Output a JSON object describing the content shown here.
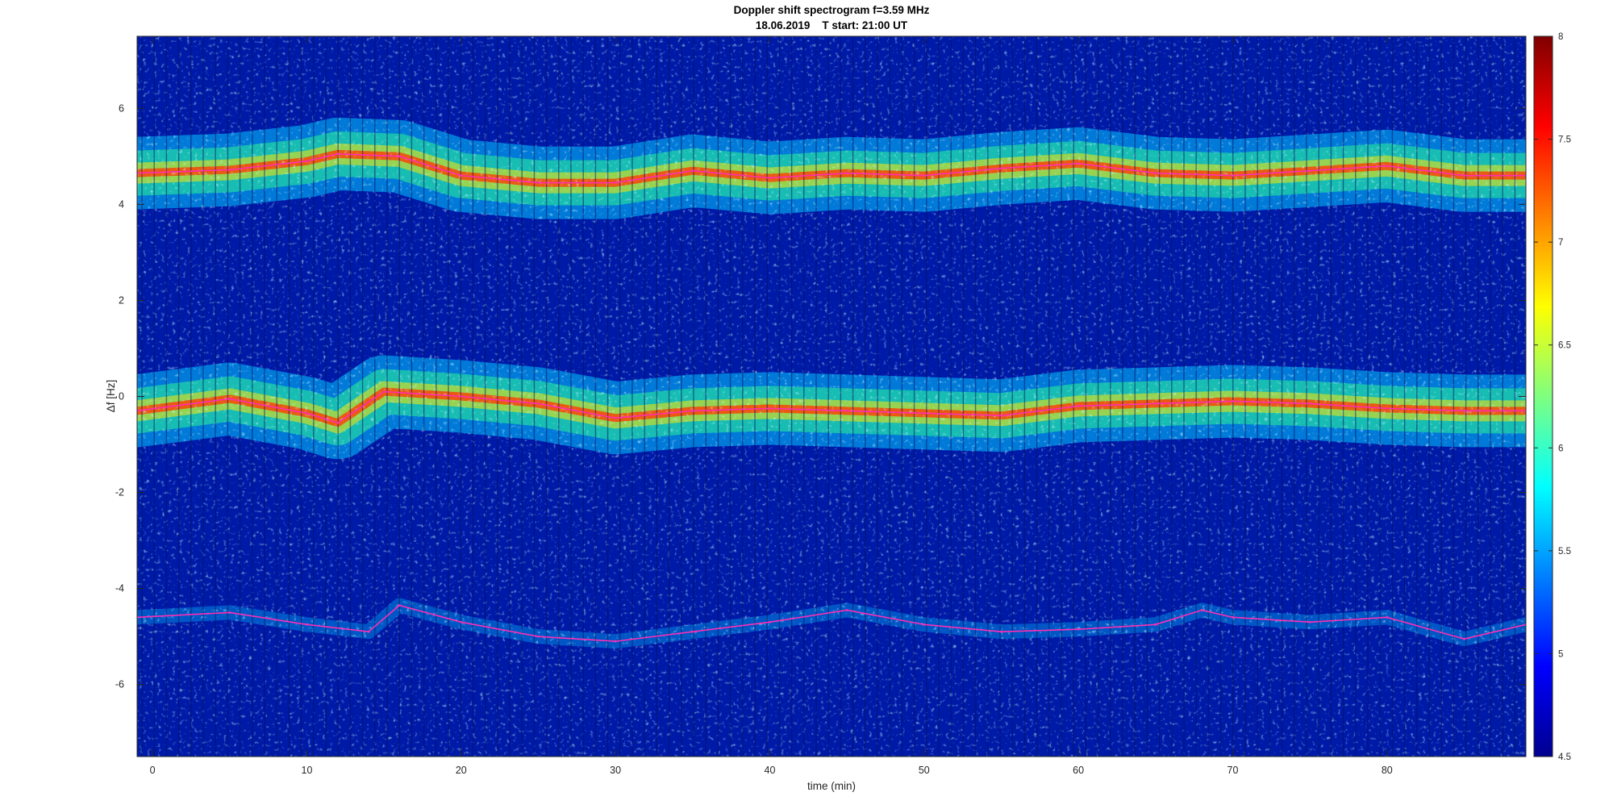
{
  "chart_data": {
    "type": "heatmap",
    "title": "Doppler shift spectrogram f=3.59 MHz",
    "subtitle": "18.06.2019    T start: 21:00 UT",
    "xlabel": "time (min)",
    "ylabel": "Δf [Hz]",
    "xlim": [
      -1,
      89
    ],
    "ylim": [
      -7.5,
      7.5
    ],
    "xticks": [
      0,
      10,
      20,
      30,
      40,
      50,
      60,
      70,
      80
    ],
    "yticks": [
      -6,
      -4,
      -2,
      0,
      2,
      4,
      6
    ],
    "colormap": "jet",
    "clim": [
      4.5,
      8
    ],
    "colorbar_ticks": [
      4.5,
      5,
      5.5,
      6,
      6.5,
      7,
      7.5,
      8
    ],
    "grid": false,
    "series": [
      {
        "color": "#ff2db4",
        "x": [
          -1,
          5,
          10,
          12,
          16,
          20,
          25,
          30,
          35,
          40,
          45,
          50,
          55,
          60,
          65,
          70,
          75,
          80,
          85,
          89
        ],
        "y": [
          4.65,
          4.72,
          4.9,
          5.05,
          5.0,
          4.6,
          4.45,
          4.45,
          4.7,
          4.55,
          4.65,
          4.6,
          4.75,
          4.85,
          4.65,
          4.6,
          4.7,
          4.8,
          4.6,
          4.6
        ]
      },
      {
        "color": "#ff2db4",
        "x": [
          -1,
          5,
          10,
          12,
          15,
          20,
          25,
          30,
          35,
          40,
          45,
          50,
          55,
          60,
          65,
          70,
          75,
          80,
          85,
          89
        ],
        "y": [
          -0.3,
          -0.05,
          -0.35,
          -0.55,
          0.1,
          0.0,
          -0.15,
          -0.45,
          -0.3,
          -0.25,
          -0.3,
          -0.35,
          -0.4,
          -0.2,
          -0.15,
          -0.1,
          -0.15,
          -0.25,
          -0.3,
          -0.3
        ]
      },
      {
        "color": "#ff2db4",
        "x": [
          -1,
          5,
          10,
          14,
          16,
          20,
          25,
          30,
          35,
          40,
          45,
          50,
          55,
          60,
          65,
          68,
          70,
          75,
          80,
          85,
          89
        ],
        "y": [
          -4.6,
          -4.5,
          -4.75,
          -4.9,
          -4.35,
          -4.7,
          -5.0,
          -5.1,
          -4.9,
          -4.7,
          -4.45,
          -4.75,
          -4.9,
          -4.85,
          -4.75,
          -4.45,
          -4.6,
          -4.7,
          -4.6,
          -5.05,
          -4.75
        ]
      }
    ]
  }
}
